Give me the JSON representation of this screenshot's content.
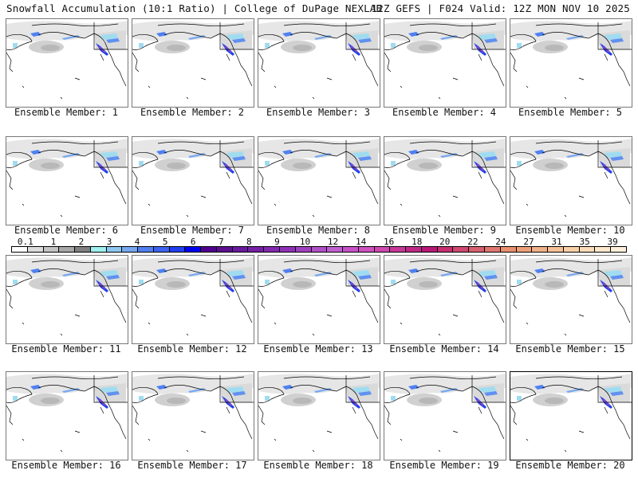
{
  "header": {
    "left_title": "Snowfall Accumulation (10:1 Ratio) | College of DuPage NEXLAB",
    "right_title": "12Z GEFS | F024 Valid: 12Z MON NOV 10 2025"
  },
  "panels": [
    {
      "label": "Ensemble Member: 1"
    },
    {
      "label": "Ensemble Member: 2"
    },
    {
      "label": "Ensemble Member: 3"
    },
    {
      "label": "Ensemble Member: 4"
    },
    {
      "label": "Ensemble Member: 5"
    },
    {
      "label": "Ensemble Member: 6"
    },
    {
      "label": "Ensemble Member: 7"
    },
    {
      "label": "Ensemble Member: 8"
    },
    {
      "label": "Ensemble Member: 9"
    },
    {
      "label": "Ensemble Member: 10"
    },
    {
      "label": "Ensemble Member: 11"
    },
    {
      "label": "Ensemble Member: 12"
    },
    {
      "label": "Ensemble Member: 13"
    },
    {
      "label": "Ensemble Member: 14"
    },
    {
      "label": "Ensemble Member: 15"
    },
    {
      "label": "Ensemble Member: 16"
    },
    {
      "label": "Ensemble Member: 17"
    },
    {
      "label": "Ensemble Member: 18"
    },
    {
      "label": "Ensemble Member: 19"
    },
    {
      "label": "Ensemble Member: 20"
    }
  ],
  "selected_panel": 20,
  "colorbar": {
    "tick_labels": [
      "0.1",
      "1",
      "2",
      "3",
      "4",
      "5",
      "6",
      "7",
      "8",
      "9",
      "10",
      "12",
      "14",
      "16",
      "18",
      "20",
      "22",
      "24",
      "27",
      "31",
      "35",
      "39"
    ],
    "colors": [
      "#ffffff",
      "#dcdcdc",
      "#c4c4c4",
      "#a8a8a8",
      "#808080",
      "#a0f0f0",
      "#8cc8f0",
      "#78a8f0",
      "#5080f0",
      "#3c64f0",
      "#2040f0",
      "#0000f0",
      "#500090",
      "#5c1090",
      "#6a1aa0",
      "#7820a8",
      "#8428b0",
      "#9030b8",
      "#a040c0",
      "#b050c8",
      "#c060d0",
      "#c850c8",
      "#d050c0",
      "#d048b0",
      "#c83898",
      "#c02888",
      "#b81878",
      "#c83070",
      "#d04870",
      "#d86070",
      "#e07870",
      "#e89070",
      "#f0a078",
      "#f0b088",
      "#f8c098",
      "#f8d0a8",
      "#fcdcb8",
      "#fde8cc",
      "#fef0dc"
    ]
  }
}
